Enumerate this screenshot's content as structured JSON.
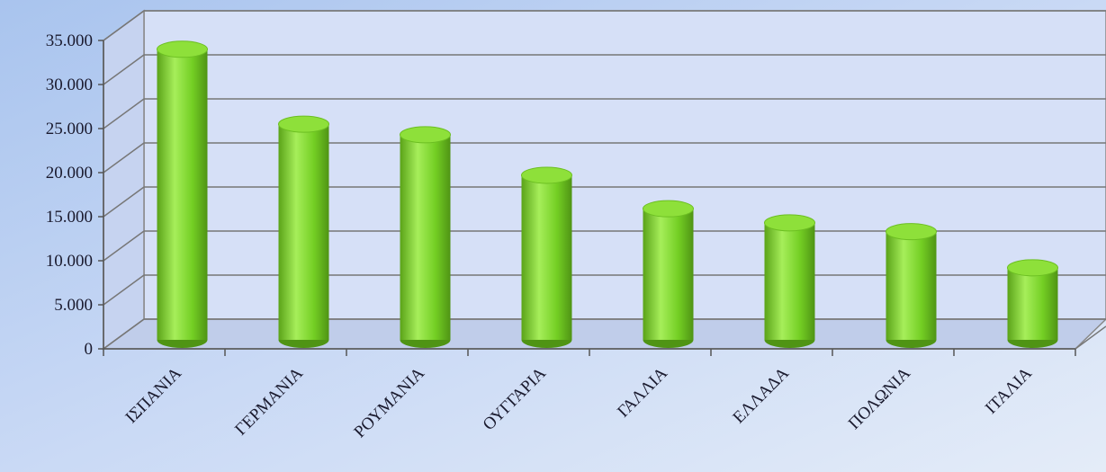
{
  "chart_data": {
    "type": "bar",
    "categories": [
      "ΙΣΠΑΝΙΑ",
      "ΓΕΡΜΑΝΙΑ",
      "ΡΟΥΜΑΝΙΑ",
      "ΟΥΓΓΑΡΙΑ",
      "ΓΑΛΛΙΑ",
      "ΕΛΛΑΔΑ",
      "ΠΟΛΩΝΙΑ",
      "ΙΤΑΛΙΑ"
    ],
    "values": [
      34000,
      25500,
      24300,
      19700,
      15900,
      14300,
      13300,
      9200
    ],
    "color": "#7ed321",
    "ylim": [
      0,
      35000
    ],
    "yticks": [
      0,
      {
        "value": 5000,
        "label": "5.000"
      },
      {
        "value": 10000,
        "label": "10.000"
      },
      {
        "value": 15000,
        "label": "15.000"
      },
      {
        "value": 20000,
        "label": "20.000"
      },
      {
        "value": 25000,
        "label": "25.000"
      },
      {
        "value": 30000,
        "label": "30.000"
      },
      {
        "value": 35000,
        "label": "35.000"
      }
    ],
    "grid": true
  }
}
